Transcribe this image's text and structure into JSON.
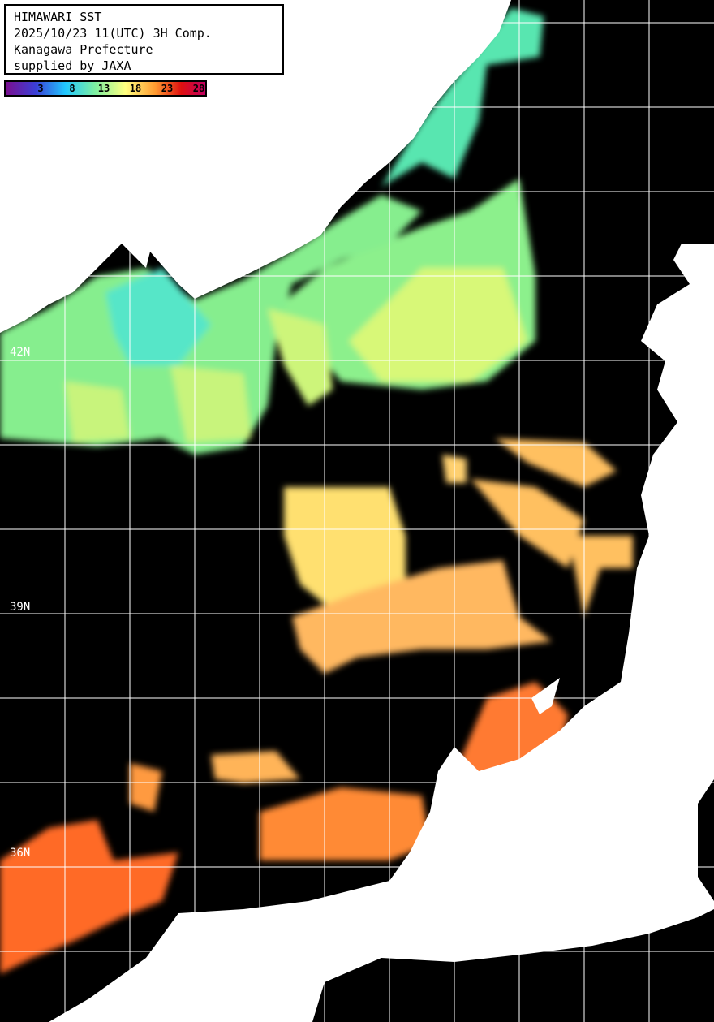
{
  "header": {
    "lines": [
      "HIMAWARI SST",
      "2025/10/23 11(UTC) 3H Comp.",
      "Kanagawa Prefecture",
      "supplied by JAXA"
    ]
  },
  "colorbar": {
    "ticks": [
      "3",
      "8",
      "13",
      "18",
      "23",
      "28"
    ],
    "colors": [
      "#7b0f8f",
      "#3b3fd6",
      "#21c8ff",
      "#7ff0a0",
      "#ffff80",
      "#ff9a30",
      "#e01010",
      "#c00060"
    ]
  },
  "map": {
    "lat_labels": [
      "42N",
      "39N",
      "36N"
    ],
    "land_color": "#ffffff",
    "cloud_color": "#000000",
    "grid_color": "#ffffff"
  }
}
